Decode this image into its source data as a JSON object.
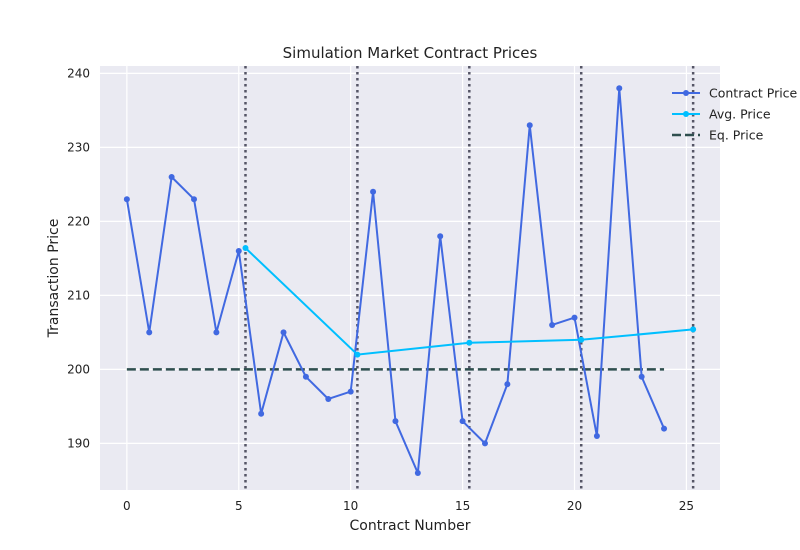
{
  "chart_data": {
    "type": "line",
    "title": "Simulation Market Contract Prices",
    "xlabel": "Contract Number",
    "ylabel": "Transaction Price",
    "xlim": [
      -1.2,
      26.5
    ],
    "ylim": [
      183.7,
      241.0
    ],
    "xticks": [
      0,
      5,
      10,
      15,
      20,
      25
    ],
    "yticks": [
      190,
      200,
      210,
      220,
      230,
      240
    ],
    "grid": true,
    "legend_position": "top-right",
    "series": [
      {
        "name": "Contract Price",
        "color": "#4169e1",
        "marker": true,
        "x": [
          0,
          1,
          2,
          3,
          4,
          5,
          6,
          7,
          8,
          9,
          10,
          11,
          12,
          13,
          14,
          15,
          16,
          17,
          18,
          19,
          20,
          21,
          22,
          23,
          24
        ],
        "y": [
          223,
          205,
          226,
          223,
          205,
          216,
          194,
          205,
          199,
          196,
          197,
          224,
          193,
          186,
          218,
          193,
          190,
          198,
          233,
          206,
          207,
          191,
          238,
          199,
          192
        ]
      },
      {
        "name": "Avg. Price",
        "color": "#00bfff",
        "marker": true,
        "x": [
          5.3,
          10.3,
          15.3,
          20.3,
          25.3
        ],
        "y": [
          216.4,
          202.0,
          203.6,
          204.0,
          205.4
        ]
      },
      {
        "name": "Eq. Price",
        "color": "#2f4f4f",
        "style": "dashed",
        "x": [
          0,
          24
        ],
        "y": [
          200,
          200
        ]
      }
    ],
    "period_lines": {
      "color": "#555566",
      "style": "dotted",
      "x": [
        5.3,
        10.3,
        15.3,
        20.3,
        25.3
      ]
    }
  }
}
